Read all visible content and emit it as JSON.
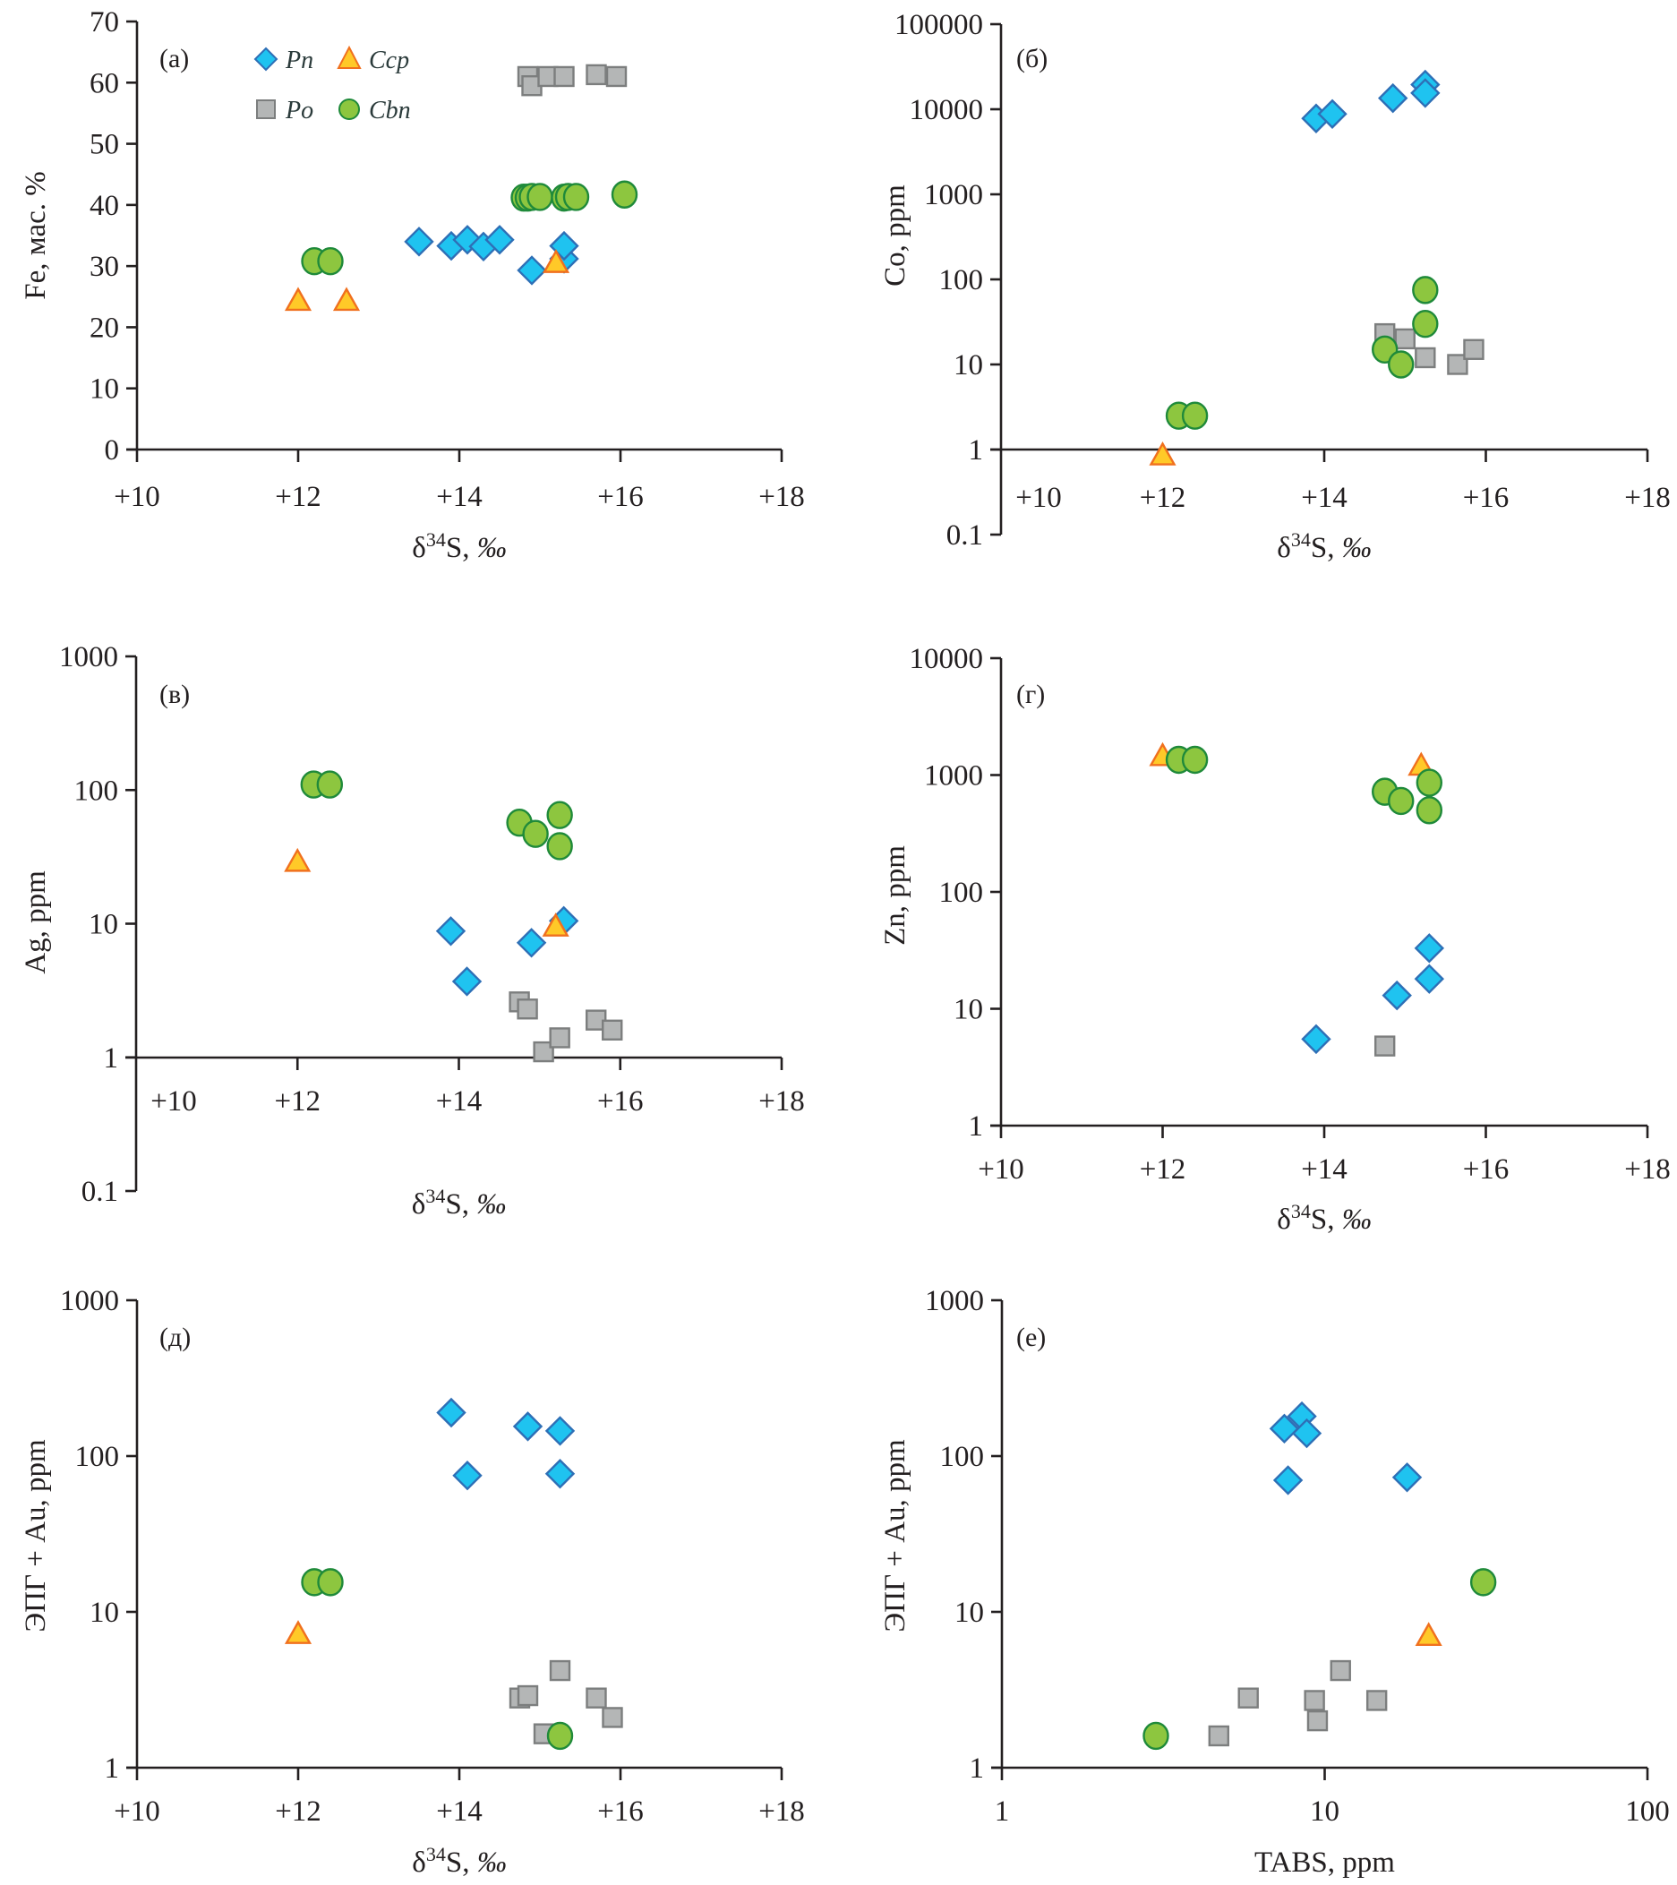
{
  "figure": {
    "legend": [
      {
        "key": "Pn",
        "label": "Pn",
        "marker": "diamond",
        "fill": "#1fc3f0",
        "stroke": "#2e6fb6"
      },
      {
        "key": "Ccp",
        "label": "Ccp",
        "marker": "triangle",
        "fill": "#ffc928",
        "stroke": "#f0701e"
      },
      {
        "key": "Po",
        "label": "Po",
        "marker": "square",
        "fill": "#b4b6b6",
        "stroke": "#7c7e7e"
      },
      {
        "key": "Cbn",
        "label": "Cbn",
        "marker": "circle",
        "fill": "#8dc63f",
        "stroke": "#1f8a3a"
      }
    ]
  },
  "chart_data": [
    {
      "id": "a",
      "type": "scatter",
      "panel_label": "(а)",
      "xlabel_main": "δ",
      "xlabel_sup": "34",
      "xlabel_rest": "S, ‰",
      "ylabel": "Fe, мас. %",
      "xscale": "linear",
      "yscale": "linear",
      "xlim": [
        10,
        18
      ],
      "ylim": [
        0,
        70
      ],
      "xticks": [
        10,
        12,
        14,
        16,
        18
      ],
      "xtick_labels": [
        "+10",
        "+12",
        "+14",
        "+16",
        "+18"
      ],
      "yticks": [
        0,
        10,
        20,
        30,
        40,
        50,
        60,
        70
      ],
      "ytick_labels": [
        "0",
        "10",
        "20",
        "30",
        "40",
        "50",
        "60",
        "70"
      ],
      "legend_position": "top-left",
      "series": [
        {
          "name": "Po",
          "points": [
            [
              14.85,
              61
            ],
            [
              14.9,
              59.5
            ],
            [
              15.1,
              61
            ],
            [
              15.3,
              61
            ],
            [
              15.7,
              61.3
            ],
            [
              15.95,
              61
            ]
          ]
        },
        {
          "name": "Cbn",
          "points": [
            [
              12.2,
              30.8
            ],
            [
              12.4,
              30.8
            ],
            [
              14.8,
              41.2
            ],
            [
              14.85,
              41.2
            ],
            [
              14.9,
              41.3
            ],
            [
              15.0,
              41.3
            ],
            [
              15.3,
              41.2
            ],
            [
              15.35,
              41.3
            ],
            [
              15.45,
              41.3
            ],
            [
              16.05,
              41.7
            ]
          ]
        },
        {
          "name": "Pn",
          "points": [
            [
              13.5,
              34.0
            ],
            [
              13.9,
              33.3
            ],
            [
              14.1,
              34.3
            ],
            [
              14.3,
              33.2
            ],
            [
              14.5,
              34.3
            ],
            [
              14.9,
              29.3
            ],
            [
              15.3,
              31.2
            ],
            [
              15.3,
              33.3
            ]
          ]
        },
        {
          "name": "Ccp",
          "points": [
            [
              12.0,
              24.3
            ],
            [
              12.6,
              24.3
            ],
            [
              15.2,
              30.5
            ]
          ]
        }
      ]
    },
    {
      "id": "b",
      "type": "scatter",
      "panel_label": "(б)",
      "xlabel_main": "δ",
      "xlabel_sup": "34",
      "xlabel_rest": "S, ‰",
      "ylabel": "Co, ppm",
      "xscale": "linear",
      "yscale": "log",
      "xlim": [
        10,
        18
      ],
      "ylim": [
        0.1,
        100000
      ],
      "x_axis_at_y": 1,
      "xticks": [
        10,
        12,
        14,
        16,
        18
      ],
      "xtick_labels": [
        "+10",
        "+12",
        "+14",
        "+16",
        "+18"
      ],
      "yticks": [
        0.1,
        1,
        10,
        100,
        1000,
        10000,
        100000
      ],
      "ytick_labels": [
        "0.1",
        "1",
        "10",
        "100",
        "1000",
        "10000",
        "100000"
      ],
      "series": [
        {
          "name": "Po",
          "points": [
            [
              14.75,
              23
            ],
            [
              15.0,
              20
            ],
            [
              15.25,
              12
            ],
            [
              15.65,
              10
            ],
            [
              15.85,
              15
            ]
          ]
        },
        {
          "name": "Cbn",
          "points": [
            [
              12.2,
              2.5
            ],
            [
              12.4,
              2.5
            ],
            [
              14.75,
              15
            ],
            [
              14.95,
              10
            ],
            [
              15.25,
              30
            ],
            [
              15.25,
              75
            ]
          ]
        },
        {
          "name": "Pn",
          "points": [
            [
              13.9,
              7800
            ],
            [
              14.1,
              8800
            ],
            [
              14.85,
              13500
            ],
            [
              15.25,
              19500
            ],
            [
              15.25,
              15500
            ]
          ]
        },
        {
          "name": "Ccp",
          "points": [
            [
              12.0,
              0.85
            ]
          ]
        }
      ]
    },
    {
      "id": "v",
      "type": "scatter",
      "panel_label": "(в)",
      "xlabel_main": "δ",
      "xlabel_sup": "34",
      "xlabel_rest": "S, ‰",
      "ylabel": "Ag, ppm",
      "xscale": "linear",
      "yscale": "log",
      "xlim": [
        10,
        18
      ],
      "ylim": [
        0.1,
        1000
      ],
      "x_axis_at_y": 1,
      "xticks": [
        10,
        12,
        14,
        16,
        18
      ],
      "xtick_labels": [
        "+10",
        "+12",
        "+14",
        "+16",
        "+18"
      ],
      "yticks": [
        0.1,
        1,
        10,
        100,
        1000
      ],
      "ytick_labels": [
        "0.1",
        "1",
        "10",
        "100",
        "1000"
      ],
      "series": [
        {
          "name": "Po",
          "points": [
            [
              14.75,
              2.6
            ],
            [
              14.85,
              2.3
            ],
            [
              15.05,
              1.1
            ],
            [
              15.25,
              1.4
            ],
            [
              15.7,
              1.9
            ],
            [
              15.9,
              1.6
            ]
          ]
        },
        {
          "name": "Cbn",
          "points": [
            [
              12.2,
              110
            ],
            [
              12.4,
              110
            ],
            [
              14.75,
              57
            ],
            [
              14.95,
              47
            ],
            [
              15.25,
              65
            ],
            [
              15.25,
              38
            ]
          ]
        },
        {
          "name": "Pn",
          "points": [
            [
              13.9,
              8.8
            ],
            [
              14.1,
              3.7
            ],
            [
              14.9,
              7.2
            ],
            [
              15.3,
              10.5
            ]
          ]
        },
        {
          "name": "Ccp",
          "points": [
            [
              12.0,
              29
            ],
            [
              15.2,
              9.5
            ]
          ]
        }
      ]
    },
    {
      "id": "g",
      "type": "scatter",
      "panel_label": "(г)",
      "xlabel_main": "δ",
      "xlabel_sup": "34",
      "xlabel_rest": "S, ‰",
      "ylabel": "Zn, ppm",
      "xscale": "linear",
      "yscale": "log",
      "xlim": [
        10,
        18
      ],
      "ylim": [
        1,
        10000
      ],
      "xticks": [
        10,
        12,
        14,
        16,
        18
      ],
      "xtick_labels": [
        "+10",
        "+12",
        "+14",
        "+16",
        "+18"
      ],
      "yticks": [
        1,
        10,
        100,
        1000,
        10000
      ],
      "ytick_labels": [
        "1",
        "10",
        "100",
        "1000",
        "10000"
      ],
      "series": [
        {
          "name": "Po",
          "points": [
            [
              14.75,
              4.8
            ]
          ]
        },
        {
          "name": "Ccp",
          "points": [
            [
              12.0,
              1450
            ],
            [
              15.2,
              1200
            ]
          ]
        },
        {
          "name": "Cbn",
          "points": [
            [
              12.2,
              1350
            ],
            [
              12.4,
              1350
            ],
            [
              14.75,
              720
            ],
            [
              14.95,
              600
            ],
            [
              15.3,
              860
            ],
            [
              15.3,
              500
            ]
          ]
        },
        {
          "name": "Pn",
          "points": [
            [
              13.9,
              5.5
            ],
            [
              14.9,
              13
            ],
            [
              15.3,
              33
            ],
            [
              15.3,
              18
            ]
          ]
        }
      ]
    },
    {
      "id": "d",
      "type": "scatter",
      "panel_label": "(д)",
      "xlabel_main": "δ",
      "xlabel_sup": "34",
      "xlabel_rest": "S, ‰",
      "ylabel": "ЭПГ + Au, ppm",
      "xscale": "linear",
      "yscale": "log",
      "xlim": [
        10,
        18
      ],
      "ylim": [
        1,
        1000
      ],
      "xticks": [
        10,
        12,
        14,
        16,
        18
      ],
      "xtick_labels": [
        "+10",
        "+12",
        "+14",
        "+16",
        "+18"
      ],
      "yticks": [
        1,
        10,
        100,
        1000
      ],
      "ytick_labels": [
        "1",
        "10",
        "100",
        "1000"
      ],
      "series": [
        {
          "name": "Po",
          "points": [
            [
              14.75,
              2.8
            ],
            [
              14.85,
              2.9
            ],
            [
              15.05,
              1.65
            ],
            [
              15.25,
              4.2
            ],
            [
              15.7,
              2.8
            ],
            [
              15.9,
              2.1
            ]
          ]
        },
        {
          "name": "Cbn",
          "points": [
            [
              12.2,
              15.5
            ],
            [
              12.4,
              15.5
            ],
            [
              15.25,
              1.6
            ]
          ]
        },
        {
          "name": "Pn",
          "points": [
            [
              13.9,
              190
            ],
            [
              14.1,
              75
            ],
            [
              14.85,
              155
            ],
            [
              15.25,
              145
            ],
            [
              15.25,
              77
            ]
          ]
        },
        {
          "name": "Ccp",
          "points": [
            [
              12.0,
              7.2
            ]
          ]
        }
      ]
    },
    {
      "id": "e",
      "type": "scatter",
      "panel_label": "(е)",
      "xlabel_main": "TABS, ppm",
      "xlabel_sup": "",
      "xlabel_rest": "",
      "ylabel": "ЭПГ + Au, ppm",
      "xscale": "log",
      "yscale": "log",
      "xlim": [
        1,
        100
      ],
      "ylim": [
        1,
        1000
      ],
      "xticks": [
        1,
        10,
        100
      ],
      "xtick_labels": [
        "1",
        "10",
        "100"
      ],
      "yticks": [
        1,
        10,
        100,
        1000
      ],
      "ytick_labels": [
        "1",
        "10",
        "100",
        "1000"
      ],
      "series": [
        {
          "name": "Po",
          "points": [
            [
              4.7,
              1.6
            ],
            [
              5.8,
              2.8
            ],
            [
              9.3,
              2.7
            ],
            [
              9.5,
              2.0
            ],
            [
              11.2,
              4.2
            ],
            [
              14.5,
              2.7
            ]
          ]
        },
        {
          "name": "Cbn",
          "points": [
            [
              3.0,
              1.6
            ],
            [
              31,
              15.5
            ]
          ]
        },
        {
          "name": "Pn",
          "points": [
            [
              7.5,
              150
            ],
            [
              8.5,
              180
            ],
            [
              8.8,
              140
            ],
            [
              7.7,
              70
            ],
            [
              18,
              73
            ]
          ]
        },
        {
          "name": "Ccp",
          "points": [
            [
              21,
              7.0
            ]
          ]
        }
      ]
    }
  ]
}
